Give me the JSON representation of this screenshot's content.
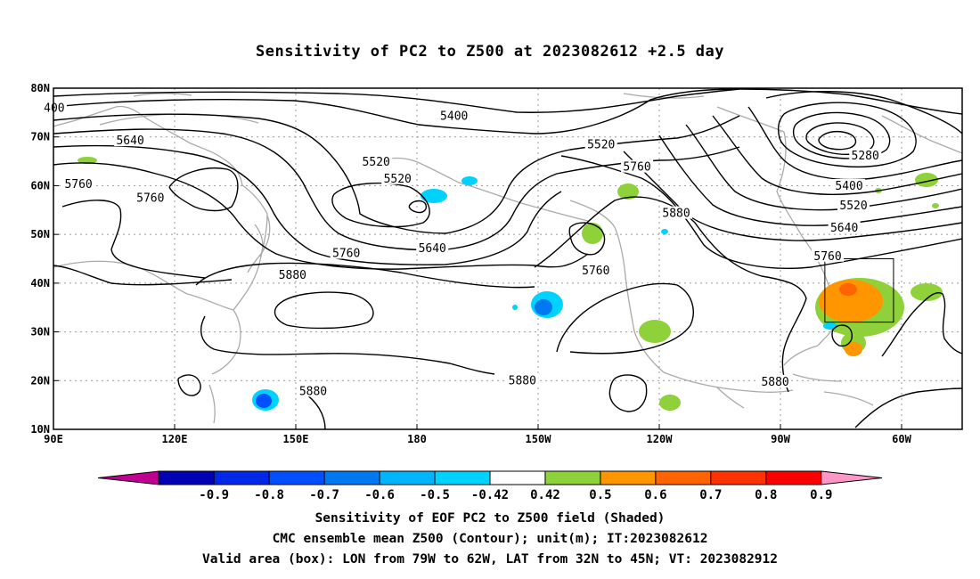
{
  "title": "Sensitivity of PC2 to Z500 at 2023082612 +2.5 day",
  "map": {
    "lon_ticks": [
      "90E",
      "120E",
      "150E",
      "180",
      "150W",
      "120W",
      "90W",
      "60W"
    ],
    "lat_ticks": [
      "80N",
      "70N",
      "60N",
      "50N",
      "40N",
      "30N",
      "20N",
      "10N"
    ],
    "lon_values": [
      90,
      120,
      150,
      180,
      210,
      240,
      270,
      300
    ],
    "lat_values": [
      80,
      70,
      60,
      50,
      40,
      30,
      20,
      10
    ],
    "lon_range": [
      90,
      315
    ],
    "lat_range": [
      10,
      80
    ],
    "valid_box": {
      "lon": [
        281,
        298
      ],
      "lat": [
        32,
        45
      ]
    }
  },
  "contour_labels": [
    {
      "text": "400",
      "lon": 90.2,
      "lat": 75.9
    },
    {
      "text": "5400",
      "lon": 189.2,
      "lat": 74.2
    },
    {
      "text": "5520",
      "lon": 225.6,
      "lat": 68.4
    },
    {
      "text": "5640",
      "lon": 109.0,
      "lat": 69.2
    },
    {
      "text": "5520",
      "lon": 169.9,
      "lat": 64.8
    },
    {
      "text": "5520",
      "lon": 175.2,
      "lat": 61.4
    },
    {
      "text": "5760",
      "lon": 96.2,
      "lat": 60.3
    },
    {
      "text": "5760",
      "lon": 114.0,
      "lat": 57.4
    },
    {
      "text": "5760",
      "lon": 234.5,
      "lat": 63.8
    },
    {
      "text": "5880",
      "lon": 244.2,
      "lat": 54.3
    },
    {
      "text": "5280",
      "lon": 291.0,
      "lat": 66.1
    },
    {
      "text": "5400",
      "lon": 287.0,
      "lat": 59.9
    },
    {
      "text": "5520",
      "lon": 288.1,
      "lat": 55.9
    },
    {
      "text": "5640",
      "lon": 285.8,
      "lat": 51.3
    },
    {
      "text": "5760",
      "lon": 281.7,
      "lat": 45.5
    },
    {
      "text": "5640",
      "lon": 183.8,
      "lat": 47.1
    },
    {
      "text": "5760",
      "lon": 162.5,
      "lat": 46.1
    },
    {
      "text": "5760",
      "lon": 224.3,
      "lat": 42.5
    },
    {
      "text": "5880",
      "lon": 149.2,
      "lat": 41.6
    },
    {
      "text": "5880",
      "lon": 154.3,
      "lat": 17.8
    },
    {
      "text": "5880",
      "lon": 206.1,
      "lat": 20.0
    },
    {
      "text": "5880",
      "lon": 268.7,
      "lat": 19.7
    }
  ],
  "colorbar": {
    "labels": [
      "-0.9",
      "-0.8",
      "-0.7",
      "-0.6",
      "-0.5",
      "-0.42",
      "0.42",
      "0.5",
      "0.6",
      "0.7",
      "0.8",
      "0.9"
    ],
    "colors": [
      "#c00090",
      "#0000b4",
      "#0028e6",
      "#0050ff",
      "#0078f0",
      "#00b4ff",
      "#00d2ff",
      "#ffffff",
      "#8fd13a",
      "#ff9600",
      "#ff6400",
      "#ff3200",
      "#fa0000",
      "#ff96c8"
    ]
  },
  "caption": {
    "line1": "Sensitivity of EOF PC2 to Z500 field (Shaded)",
    "line2": "CMC ensemble mean Z500 (Contour); unit(m); IT:2023082612",
    "line3": "Valid area (box): LON from 79W to 62W, LAT from 32N to 45N; VT: 2023082912"
  }
}
